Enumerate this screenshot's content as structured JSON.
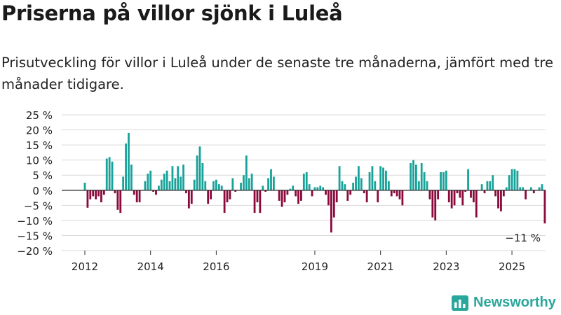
{
  "header": {
    "title": "Priserna på villor sjönk i Luleå",
    "subtitle": "Prisutveckling för villor i Luleå under de senaste tre månaderna, jämfört med tre månader tidigare."
  },
  "brand": {
    "name": "Newsworthy",
    "icon": "newsworthy-logo-icon",
    "color": "#2aa79b"
  },
  "colors": {
    "positive": "#18a29a",
    "negative": "#8a0a3c",
    "grid": "#d9d9d9",
    "zero_line": "#333333"
  },
  "chart_data": {
    "type": "bar",
    "title": "Priserna på villor sjönk i Luleå",
    "subtitle": "Prisutveckling för villor i Luleå under de senaste tre månaderna, jämfört med tre månader tidigare.",
    "xlabel": "",
    "ylabel": "",
    "unit": "%",
    "ylim": [
      -20,
      25
    ],
    "yticks": [
      25,
      20,
      15,
      10,
      5,
      0,
      -5,
      -10,
      -15,
      -20
    ],
    "ytick_labels": [
      "25 %",
      "20 %",
      "15 %",
      "10 %",
      "5 %",
      "0 %",
      "−5 %",
      "−10 %",
      "−15 %",
      "−20 %"
    ],
    "xticks": [
      2012,
      2014,
      2016,
      2019,
      2021,
      2023,
      2025
    ],
    "xlim": [
      2011.5,
      2026.0
    ],
    "grid": true,
    "legend": "none",
    "annotation": {
      "x": 2025.33,
      "value": -11,
      "text": "−11 %"
    },
    "x_start": 2012.0,
    "x_step_months": 1,
    "values": [
      2.5,
      -5.8,
      -3.0,
      -2.0,
      -3.0,
      -2.0,
      -4.0,
      -1.5,
      10.5,
      11.0,
      9.5,
      -1.0,
      -6.5,
      -7.5,
      4.5,
      15.5,
      19.0,
      8.5,
      -1.5,
      -4.0,
      -4.0,
      0,
      3.0,
      5.5,
      6.5,
      -0.5,
      -1.5,
      1.5,
      3.5,
      5.5,
      6.5,
      3.0,
      8.0,
      4.0,
      8.0,
      4.5,
      8.5,
      -1.0,
      -6.0,
      -4.5,
      3.5,
      11.5,
      14.5,
      9.0,
      3.0,
      -4.5,
      -3.0,
      3.0,
      3.5,
      2.0,
      1.5,
      -7.5,
      -4.0,
      -3.0,
      4.0,
      -0.5,
      0,
      2.5,
      5.0,
      11.5,
      4.0,
      5.5,
      -7.5,
      -4.0,
      -7.5,
      1.5,
      -0.5,
      4.0,
      7.0,
      4.5,
      0,
      -3.5,
      -5.5,
      -4.0,
      -1.5,
      0.5,
      1.5,
      -2.0,
      -4.5,
      -3.5,
      5.5,
      6.0,
      2.0,
      -2.0,
      1.0,
      1.0,
      1.5,
      1.0,
      -1.5,
      -5.0,
      -14.0,
      -9.0,
      -4.0,
      8.0,
      3.0,
      2.0,
      -3.5,
      -1.5,
      2.5,
      4.5,
      8.0,
      4.0,
      -1.0,
      -4.0,
      6.0,
      8.0,
      3.0,
      -4.0,
      8.0,
      7.5,
      6.5,
      3.0,
      -2.0,
      -1.0,
      -2.0,
      -3.0,
      -5.0,
      0,
      0,
      9.0,
      10.0,
      8.5,
      3.0,
      9.0,
      6.0,
      3.0,
      -3.0,
      -9.0,
      -10.0,
      -3.0,
      6.0,
      6.0,
      6.5,
      -4.0,
      -6.0,
      -5.0,
      -1.0,
      -2.5,
      -5.0,
      -0.5,
      7.0,
      -2.5,
      -4.0,
      -9.0,
      0,
      2.0,
      -1.0,
      3.0,
      3.0,
      5.0,
      -2.0,
      -6.0,
      -7.0,
      -2.0,
      1.0,
      5.0,
      7.0,
      7.0,
      6.5,
      1.0,
      1.0,
      -3.0,
      0,
      1.0,
      -1.0,
      0,
      1.0,
      2.0,
      -11.0
    ]
  }
}
